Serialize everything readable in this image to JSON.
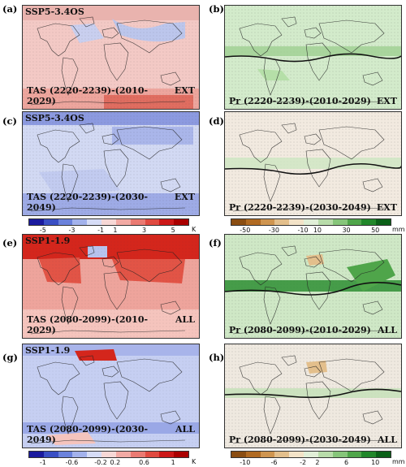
{
  "panels": [
    {
      "label": "(a)",
      "scenario": "SSP5-3.4OS",
      "title": "TAS (2220-2239)-(2010-2029)",
      "tag": "EXT"
    },
    {
      "label": "(b)",
      "scenario": "",
      "title": "Pr (2220-2239)-(2010-2029)",
      "tag": "EXT"
    },
    {
      "label": "(c)",
      "scenario": "SSP5-3.4OS",
      "title": "TAS (2220-2239)-(2030-2049)",
      "tag": "EXT"
    },
    {
      "label": "(d)",
      "scenario": "",
      "title": "Pr (2220-2239)-(2030-2049)",
      "tag": "EXT"
    },
    {
      "label": "(e)",
      "scenario": "SSP1-1.9",
      "title": "TAS (2080-2099)-(2010-2029)",
      "tag": "ALL"
    },
    {
      "label": "(f)",
      "scenario": "",
      "title": "Pr (2080-2099)-(2010-2029)",
      "tag": "ALL"
    },
    {
      "label": "(g)",
      "scenario": "SSP1-1.9",
      "title": "TAS (2080-2099)-(2030-2049)",
      "tag": "ALL"
    },
    {
      "label": "(h)",
      "scenario": "",
      "title": "Pr (2080-2099)-(2030-2049)",
      "tag": "ALL"
    }
  ],
  "colorbars": [
    {
      "ticks": [
        "-5",
        "-3",
        "-1",
        "1",
        "3",
        "5"
      ],
      "unit": "K",
      "colors": [
        "#1a1a9e",
        "#3a4fc4",
        "#6b82dc",
        "#a3b2ec",
        "#d6dcf6",
        "#f7d8d6",
        "#f2aaa4",
        "#ea7a72",
        "#e04a40",
        "#cc1818",
        "#aa0000"
      ]
    },
    {
      "ticks": [
        "-50",
        "-30",
        "-10",
        "10",
        "30",
        "50"
      ],
      "unit": "mm",
      "colors": [
        "#8a4d12",
        "#b06a22",
        "#cf9550",
        "#e3bf8c",
        "#f3e3c8",
        "#e1efd8",
        "#b8dcaa",
        "#86c57a",
        "#4fa54a",
        "#21872a",
        "#0a6018"
      ]
    },
    {
      "ticks": [
        "-1",
        "-0.6",
        "-0.2",
        "0.2",
        "0.6",
        "1"
      ],
      "unit": "K",
      "colors": [
        "#1a1a9e",
        "#3a4fc4",
        "#6b82dc",
        "#a3b2ec",
        "#d6dcf6",
        "#f7d8d6",
        "#f2aaa4",
        "#ea7a72",
        "#e04a40",
        "#cc1818",
        "#aa0000"
      ]
    },
    {
      "ticks": [
        "-10",
        "-6",
        "-2",
        "2",
        "6",
        "10"
      ],
      "unit": "mm",
      "colors": [
        "#8a4d12",
        "#b06a22",
        "#cf9550",
        "#e3bf8c",
        "#f3e3c8",
        "#e1efd8",
        "#b8dcaa",
        "#86c57a",
        "#4fa54a",
        "#21872a",
        "#0a6018"
      ]
    }
  ]
}
